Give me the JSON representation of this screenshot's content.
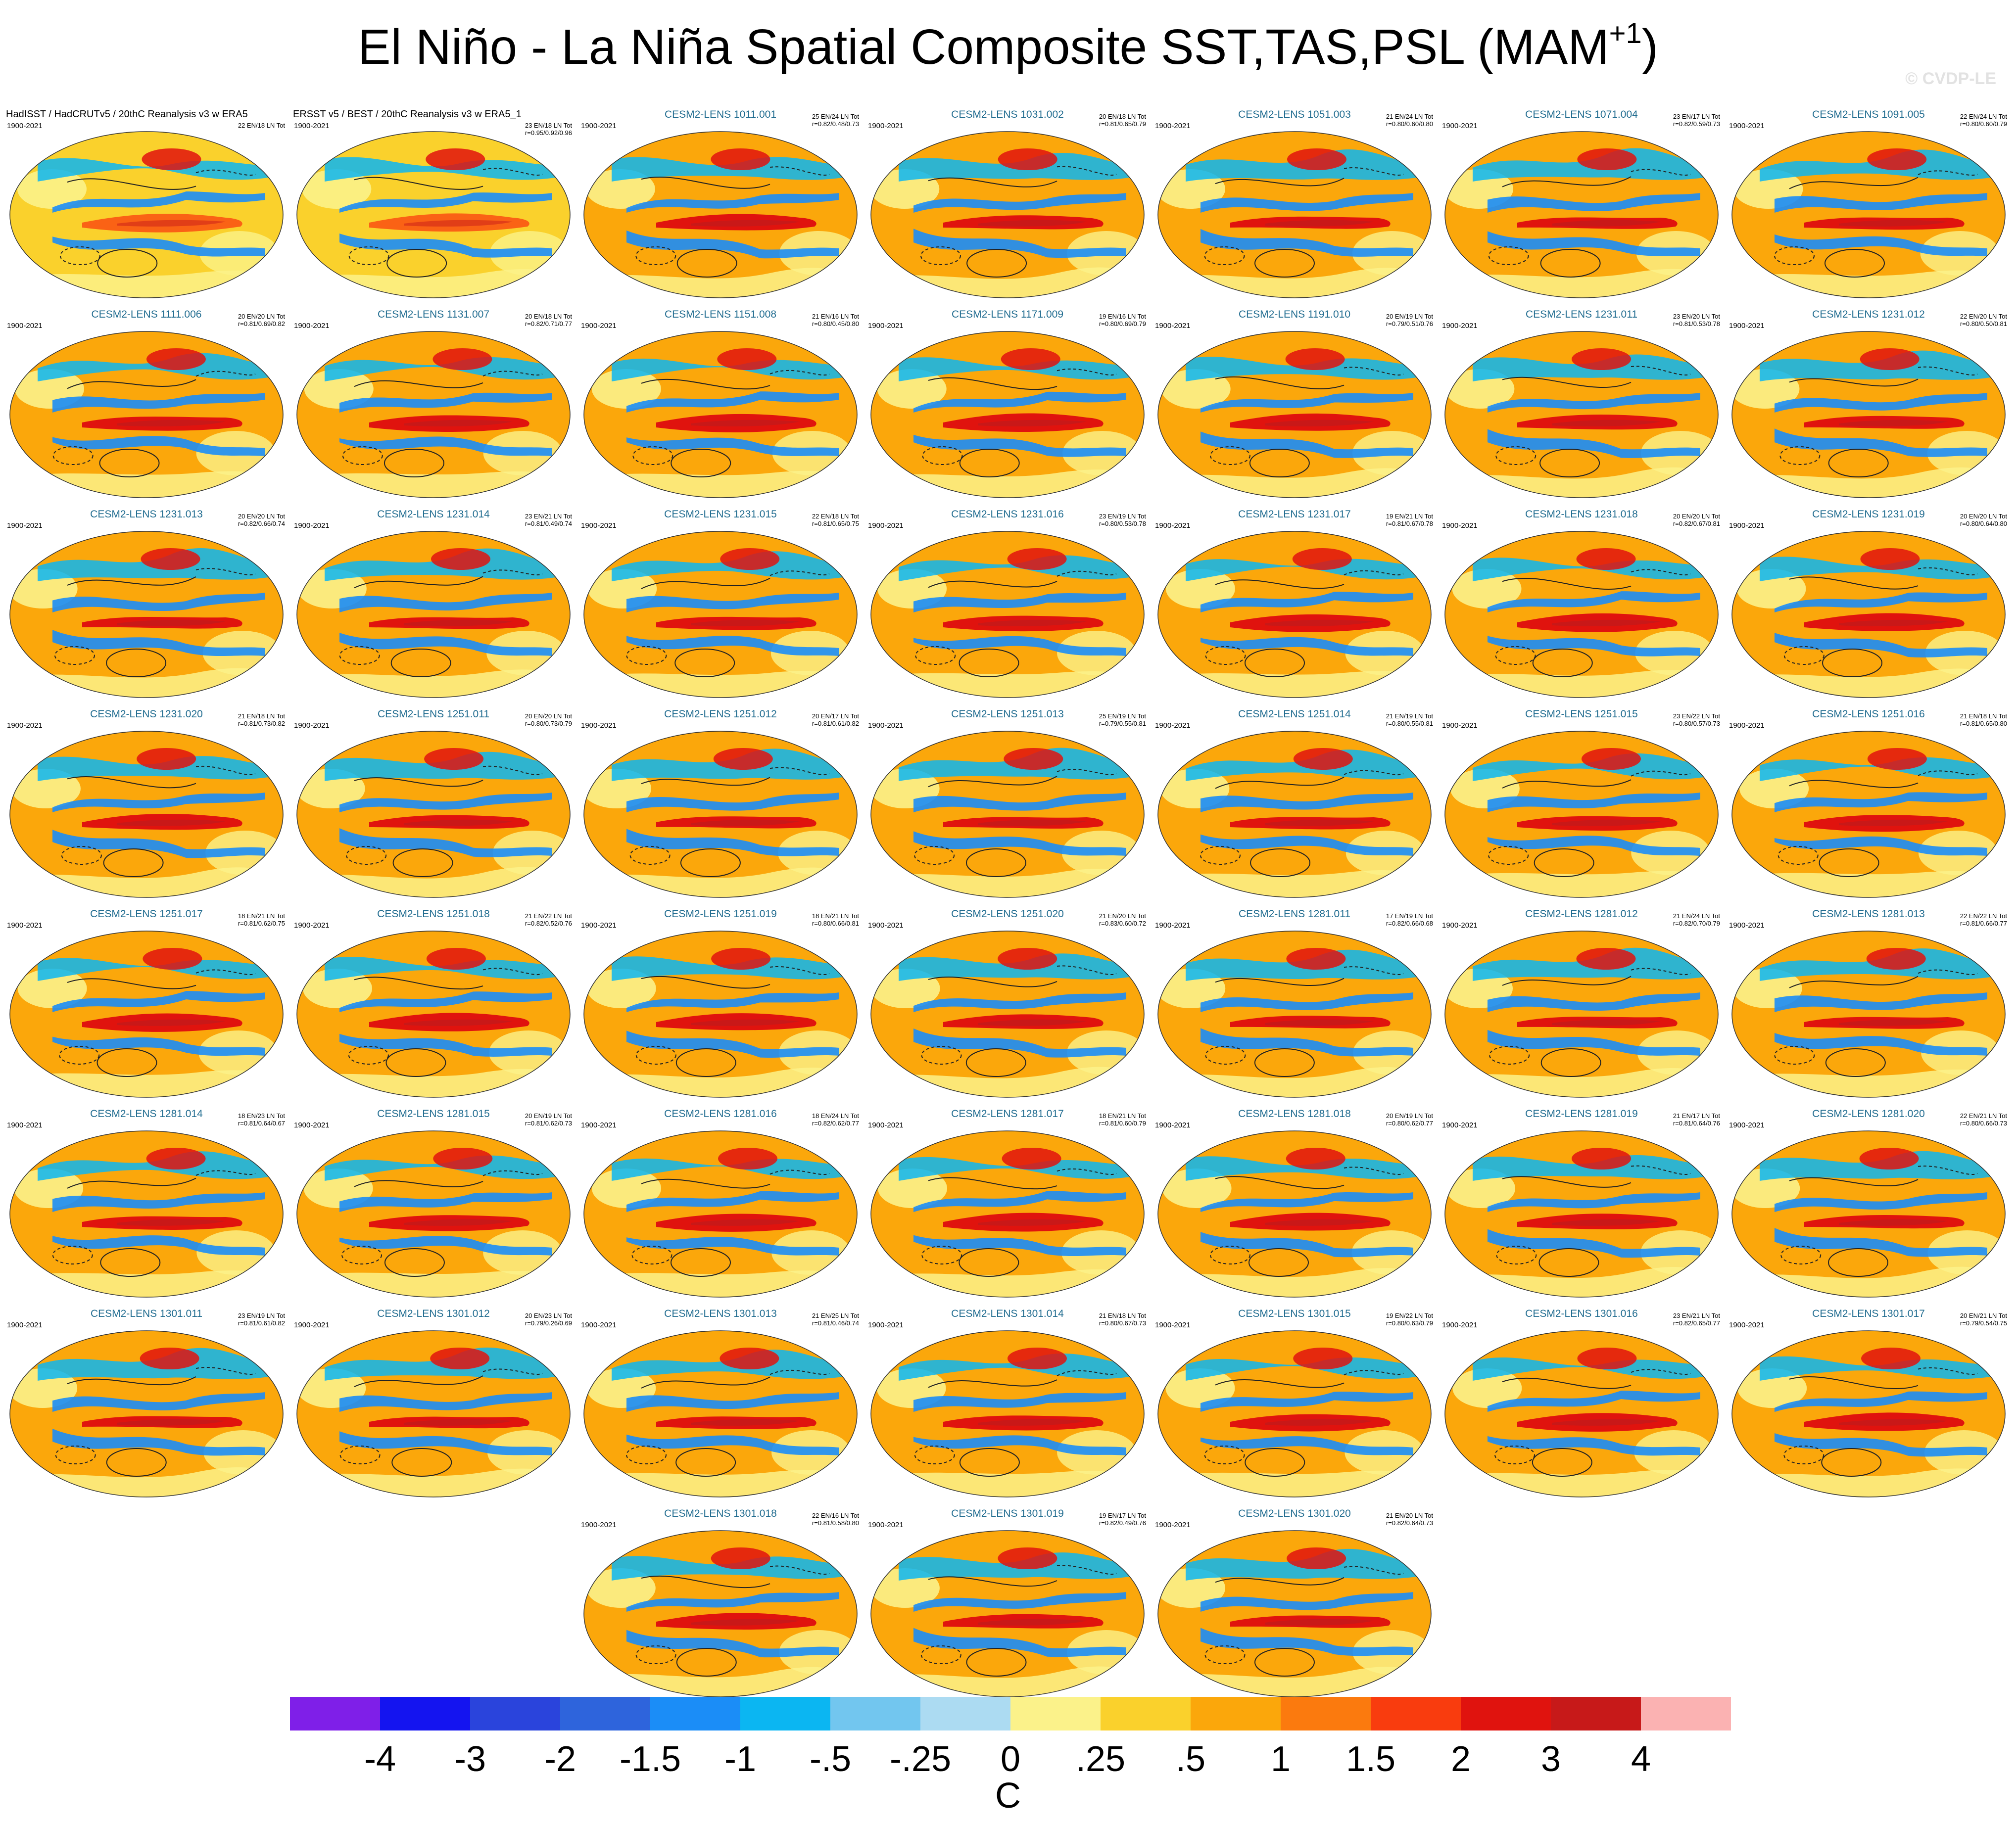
{
  "title": {
    "main": "El Niño - La Niña Spatial Composite SST,TAS,PSL (MAM",
    "superscript": "+1",
    "close": ")"
  },
  "watermark": "© CVDP-LE",
  "period": "1900-2021",
  "panels": [
    {
      "name": "HadISST / HadCRUTv5 / 20thC Reanalysis v3 w ERA5",
      "stats": [
        "22 EN/18 LN Tot",
        ""
      ],
      "obs": true
    },
    {
      "name": "ERSST v5 / BEST / 20thC Reanalysis v3 w ERA5_1",
      "stats": [
        "23 EN/18 LN Tot",
        "r=0.95/0.92/0.96"
      ],
      "obs": true
    },
    {
      "name": "CESM2-LENS 1011.001",
      "stats": [
        "25 EN/24 LN Tot",
        "r=0.82/0.48/0.73"
      ]
    },
    {
      "name": "CESM2-LENS 1031.002",
      "stats": [
        "20 EN/18 LN Tot",
        "r=0.81/0.65/0.79"
      ]
    },
    {
      "name": "CESM2-LENS 1051.003",
      "stats": [
        "21 EN/24 LN Tot",
        "r=0.80/0.60/0.80"
      ]
    },
    {
      "name": "CESM2-LENS 1071.004",
      "stats": [
        "23 EN/17 LN Tot",
        "r=0.82/0.59/0.73"
      ]
    },
    {
      "name": "CESM2-LENS 1091.005",
      "stats": [
        "22 EN/24 LN Tot",
        "r=0.80/0.60/0.79"
      ]
    },
    {
      "name": "CESM2-LENS 1111.006",
      "stats": [
        "20 EN/20 LN Tot",
        "r=0.81/0.69/0.82"
      ]
    },
    {
      "name": "CESM2-LENS 1131.007",
      "stats": [
        "20 EN/18 LN Tot",
        "r=0.82/0.71/0.77"
      ]
    },
    {
      "name": "CESM2-LENS 1151.008",
      "stats": [
        "21 EN/16 LN Tot",
        "r=0.80/0.45/0.80"
      ]
    },
    {
      "name": "CESM2-LENS 1171.009",
      "stats": [
        "19 EN/16 LN Tot",
        "r=0.80/0.69/0.79"
      ]
    },
    {
      "name": "CESM2-LENS 1191.010",
      "stats": [
        "20 EN/19 LN Tot",
        "r=0.79/0.51/0.76"
      ]
    },
    {
      "name": "CESM2-LENS 1231.011",
      "stats": [
        "23 EN/20 LN Tot",
        "r=0.81/0.53/0.78"
      ]
    },
    {
      "name": "CESM2-LENS 1231.012",
      "stats": [
        "22 EN/20 LN Tot",
        "r=0.80/0.50/0.81"
      ]
    },
    {
      "name": "CESM2-LENS 1231.013",
      "stats": [
        "20 EN/20 LN Tot",
        "r=0.82/0.66/0.74"
      ]
    },
    {
      "name": "CESM2-LENS 1231.014",
      "stats": [
        "23 EN/21 LN Tot",
        "r=0.81/0.49/0.74"
      ]
    },
    {
      "name": "CESM2-LENS 1231.015",
      "stats": [
        "22 EN/18 LN Tot",
        "r=0.81/0.65/0.75"
      ]
    },
    {
      "name": "CESM2-LENS 1231.016",
      "stats": [
        "23 EN/19 LN Tot",
        "r=0.80/0.53/0.78"
      ]
    },
    {
      "name": "CESM2-LENS 1231.017",
      "stats": [
        "19 EN/21 LN Tot",
        "r=0.81/0.67/0.78"
      ]
    },
    {
      "name": "CESM2-LENS 1231.018",
      "stats": [
        "20 EN/20 LN Tot",
        "r=0.82/0.67/0.81"
      ]
    },
    {
      "name": "CESM2-LENS 1231.019",
      "stats": [
        "20 EN/20 LN Tot",
        "r=0.80/0.64/0.80"
      ]
    },
    {
      "name": "CESM2-LENS 1231.020",
      "stats": [
        "21 EN/18 LN Tot",
        "r=0.81/0.73/0.82"
      ]
    },
    {
      "name": "CESM2-LENS 1251.011",
      "stats": [
        "20 EN/20 LN Tot",
        "r=0.80/0.73/0.79"
      ]
    },
    {
      "name": "CESM2-LENS 1251.012",
      "stats": [
        "20 EN/17 LN Tot",
        "r=0.81/0.61/0.82"
      ]
    },
    {
      "name": "CESM2-LENS 1251.013",
      "stats": [
        "25 EN/19 LN Tot",
        "r=0.79/0.55/0.81"
      ]
    },
    {
      "name": "CESM2-LENS 1251.014",
      "stats": [
        "21 EN/19 LN Tot",
        "r=0.80/0.55/0.81"
      ]
    },
    {
      "name": "CESM2-LENS 1251.015",
      "stats": [
        "23 EN/22 LN Tot",
        "r=0.80/0.57/0.73"
      ]
    },
    {
      "name": "CESM2-LENS 1251.016",
      "stats": [
        "21 EN/18 LN Tot",
        "r=0.81/0.65/0.80"
      ]
    },
    {
      "name": "CESM2-LENS 1251.017",
      "stats": [
        "18 EN/21 LN Tot",
        "r=0.81/0.62/0.75"
      ]
    },
    {
      "name": "CESM2-LENS 1251.018",
      "stats": [
        "21 EN/22 LN Tot",
        "r=0.82/0.52/0.76"
      ]
    },
    {
      "name": "CESM2-LENS 1251.019",
      "stats": [
        "18 EN/21 LN Tot",
        "r=0.80/0.66/0.81"
      ]
    },
    {
      "name": "CESM2-LENS 1251.020",
      "stats": [
        "21 EN/20 LN Tot",
        "r=0.83/0.60/0.72"
      ]
    },
    {
      "name": "CESM2-LENS 1281.011",
      "stats": [
        "17 EN/19 LN Tot",
        "r=0.82/0.66/0.68"
      ]
    },
    {
      "name": "CESM2-LENS 1281.012",
      "stats": [
        "21 EN/24 LN Tot",
        "r=0.82/0.70/0.79"
      ]
    },
    {
      "name": "CESM2-LENS 1281.013",
      "stats": [
        "22 EN/22 LN Tot",
        "r=0.81/0.66/0.77"
      ]
    },
    {
      "name": "CESM2-LENS 1281.014",
      "stats": [
        "18 EN/23 LN Tot",
        "r=0.81/0.64/0.67"
      ]
    },
    {
      "name": "CESM2-LENS 1281.015",
      "stats": [
        "20 EN/19 LN Tot",
        "r=0.81/0.62/0.73"
      ]
    },
    {
      "name": "CESM2-LENS 1281.016",
      "stats": [
        "18 EN/24 LN Tot",
        "r=0.82/0.62/0.77"
      ]
    },
    {
      "name": "CESM2-LENS 1281.017",
      "stats": [
        "18 EN/21 LN Tot",
        "r=0.81/0.60/0.79"
      ]
    },
    {
      "name": "CESM2-LENS 1281.018",
      "stats": [
        "20 EN/19 LN Tot",
        "r=0.80/0.62/0.77"
      ]
    },
    {
      "name": "CESM2-LENS 1281.019",
      "stats": [
        "21 EN/17 LN Tot",
        "r=0.81/0.64/0.76"
      ]
    },
    {
      "name": "CESM2-LENS 1281.020",
      "stats": [
        "22 EN/21 LN Tot",
        "r=0.80/0.66/0.73"
      ]
    },
    {
      "name": "CESM2-LENS 1301.011",
      "stats": [
        "23 EN/19 LN Tot",
        "r=0.81/0.61/0.82"
      ]
    },
    {
      "name": "CESM2-LENS 1301.012",
      "stats": [
        "20 EN/23 LN Tot",
        "r=0.79/0.26/0.69"
      ]
    },
    {
      "name": "CESM2-LENS 1301.013",
      "stats": [
        "21 EN/25 LN Tot",
        "r=0.81/0.46/0.74"
      ]
    },
    {
      "name": "CESM2-LENS 1301.014",
      "stats": [
        "21 EN/18 LN Tot",
        "r=0.80/0.67/0.73"
      ]
    },
    {
      "name": "CESM2-LENS 1301.015",
      "stats": [
        "19 EN/22 LN Tot",
        "r=0.80/0.63/0.79"
      ]
    },
    {
      "name": "CESM2-LENS 1301.016",
      "stats": [
        "23 EN/21 LN Tot",
        "r=0.82/0.65/0.77"
      ]
    },
    {
      "name": "CESM2-LENS 1301.017",
      "stats": [
        "20 EN/21 LN Tot",
        "r=0.79/0.54/0.75"
      ]
    },
    {
      "name": "CESM2-LENS 1301.018",
      "stats": [
        "22 EN/16 LN Tot",
        "r=0.81/0.58/0.80"
      ]
    },
    {
      "name": "CESM2-LENS 1301.019",
      "stats": [
        "19 EN/17 LN Tot",
        "r=0.82/0.49/0.76"
      ]
    },
    {
      "name": "CESM2-LENS 1301.020",
      "stats": [
        "21 EN/20 LN Tot",
        "r=0.82/0.64/0.73"
      ]
    }
  ],
  "colorbar": {
    "colors": [
      "#7f1fe8",
      "#1414f0",
      "#2a44dc",
      "#2e64dc",
      "#1b8df7",
      "#0bb6f2",
      "#72c6ef",
      "#acdbf2",
      "#fbf28a",
      "#fad12c",
      "#fba70b",
      "#fb7a0e",
      "#f93c0e",
      "#e0130e",
      "#c71919",
      "#fbb2b2"
    ],
    "ticks": [
      "-4",
      "-3",
      "-2",
      "-1.5",
      "-1",
      "-.5",
      "-.25",
      "0",
      ".25",
      ".5",
      "1",
      "1.5",
      "2",
      "3",
      "4"
    ],
    "unit": "C"
  }
}
